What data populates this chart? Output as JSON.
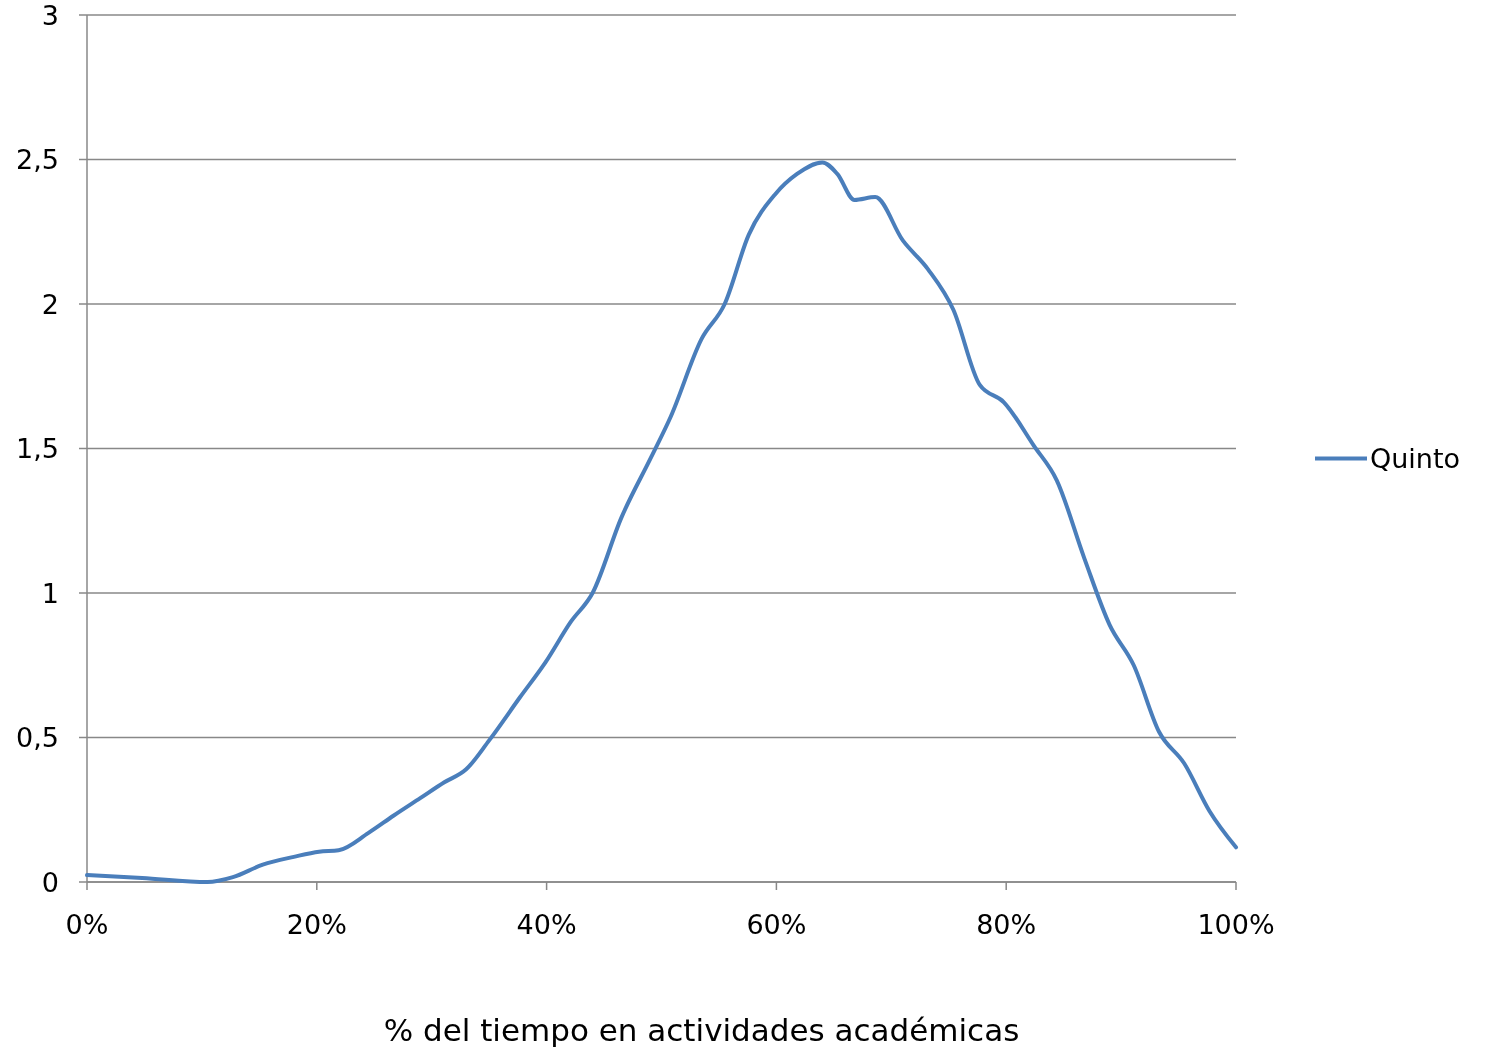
{
  "chart_data": {
    "type": "line",
    "xlabel": "% del tiempo en actividades académicas",
    "x": [
      0,
      4.8,
      10.5,
      12.7,
      15.3,
      18,
      20.2,
      21.9,
      24.5,
      26.7,
      29,
      31.1,
      33,
      35,
      37.7,
      39.9,
      42.1,
      44,
      46.5,
      49.1,
      50.8,
      53.5,
      55.5,
      57.6,
      59.9,
      61.8,
      64,
      65.3,
      66.8,
      68.6,
      71,
      73.2,
      75.4,
      77.7,
      79.8,
      82.4,
      84.4,
      86.8,
      89,
      91.1,
      93.3,
      95.5,
      97.7,
      100
    ],
    "series": [
      {
        "name": "Quinto",
        "color": "#4a7ebb",
        "values": [
          0.024,
          0.014,
          0,
          0.017,
          0.06,
          0.087,
          0.105,
          0.11,
          0.17,
          0.23,
          0.29,
          0.345,
          0.39,
          0.49,
          0.64,
          0.76,
          0.9,
          1.0,
          1.26,
          1.47,
          1.61,
          1.88,
          2.0,
          2.24,
          2.38,
          2.45,
          2.49,
          2.45,
          2.36,
          2.37,
          2.22,
          2.12,
          1.98,
          1.72,
          1.66,
          1.51,
          1.39,
          1.12,
          0.89,
          0.75,
          0.52,
          0.41,
          0.245,
          0.12
        ]
      }
    ],
    "xlim": [
      0,
      100
    ],
    "xticks": [
      {
        "value": 0,
        "label": "0%"
      },
      {
        "value": 20,
        "label": "20%"
      },
      {
        "value": 40,
        "label": "40%"
      },
      {
        "value": 60,
        "label": "60%"
      },
      {
        "value": 80,
        "label": "80%"
      },
      {
        "value": 100,
        "label": "100%"
      }
    ],
    "ylim": [
      0,
      3
    ],
    "yticks": [
      0,
      {
        "value": 0.5,
        "label": "0,5"
      },
      1,
      {
        "value": 1.5,
        "label": "1,5"
      },
      2,
      {
        "value": 2.5,
        "label": "2,5"
      },
      3
    ],
    "grid": "y",
    "legend": "right",
    "marker": "none",
    "line_style": "solid"
  }
}
